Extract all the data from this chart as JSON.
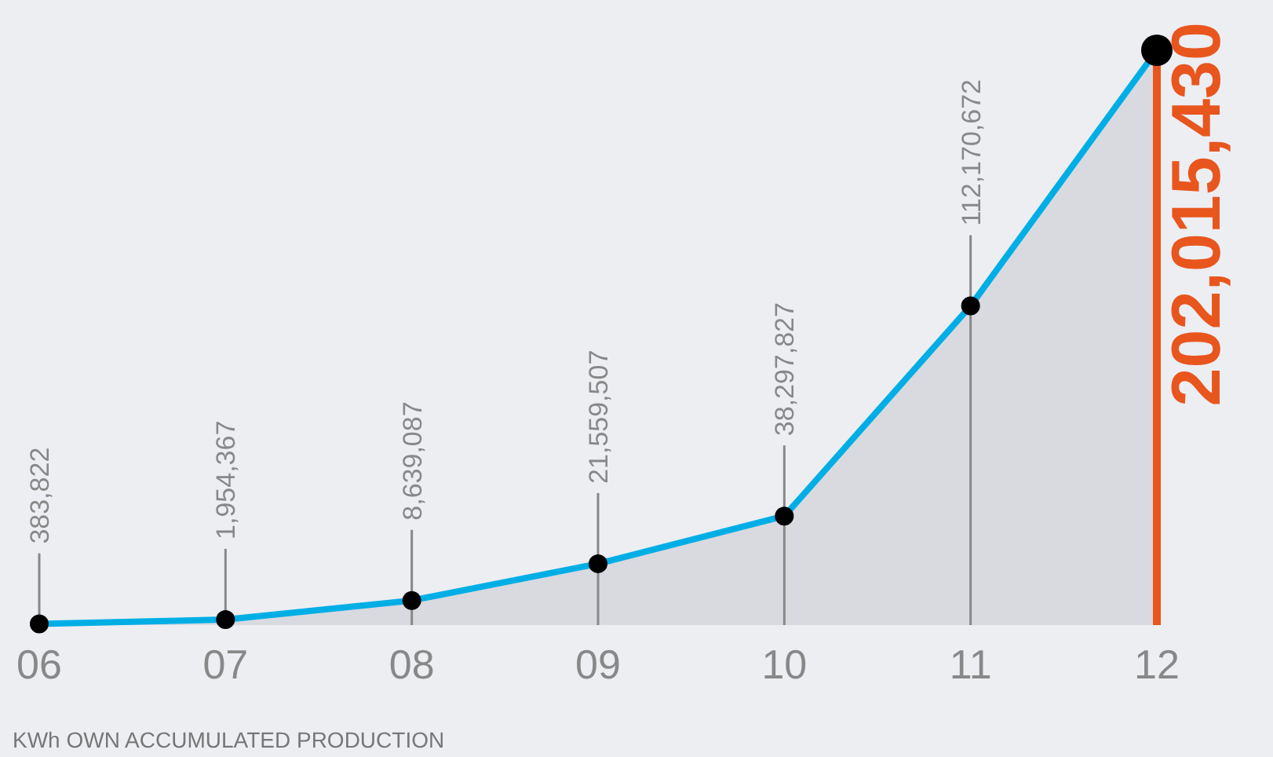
{
  "chart_data": {
    "type": "area",
    "categories": [
      "06",
      "07",
      "08",
      "09",
      "10",
      "11",
      "12"
    ],
    "series": [
      {
        "color": "#00aee6",
        "values": [
          383822,
          1954367,
          8639087,
          21559507,
          38297827,
          112170672,
          202015430
        ],
        "value_labels": [
          "383,822",
          "1,954,367",
          "8,639,087",
          "21,559,507",
          "38,297,827",
          "112,170,672",
          "202,015,430"
        ]
      }
    ],
    "marker": "circle",
    "ref_lines": [
      {
        "axis": "x",
        "value": "12",
        "color": "#e8561e"
      }
    ],
    "annotations": [
      "KWh OWN ACCUMULATED PRODUCTION"
    ]
  }
}
